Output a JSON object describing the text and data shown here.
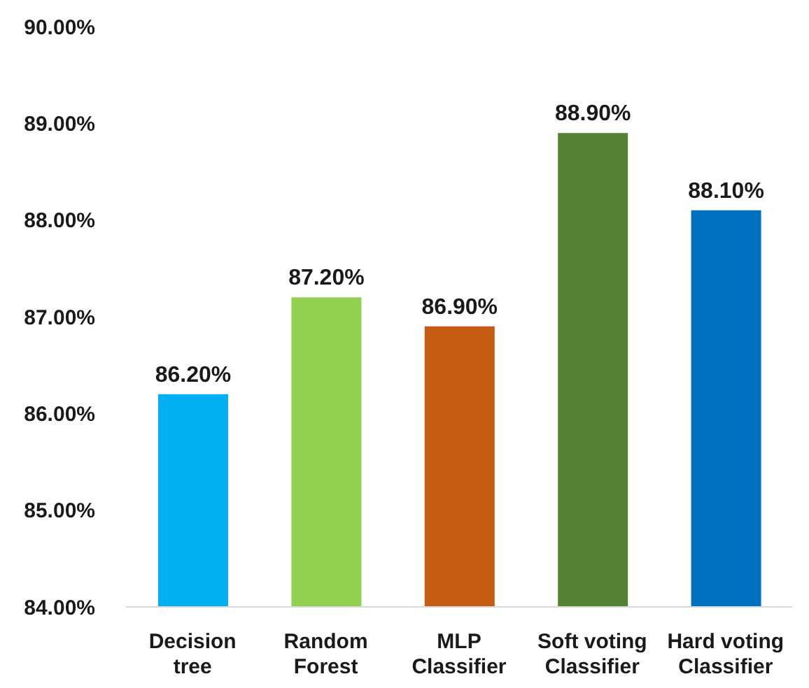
{
  "chart_data": {
    "type": "bar",
    "categories": [
      "Decision tree",
      "Random Forest",
      "MLP Classifier",
      "Soft voting Classifier",
      "Hard voting Classifier"
    ],
    "values": [
      86.2,
      87.2,
      86.9,
      88.9,
      88.1
    ],
    "value_labels": [
      "86.20%",
      "87.20%",
      "86.90%",
      "88.90%",
      "88.10%"
    ],
    "colors": [
      "#00b0f0",
      "#92d050",
      "#c55a11",
      "#548235",
      "#0070c0"
    ],
    "ylim": [
      84,
      90
    ],
    "yticks": [
      {
        "value": 84,
        "label": "84.00%"
      },
      {
        "value": 85,
        "label": "85.00%"
      },
      {
        "value": 86,
        "label": "86.00%"
      },
      {
        "value": 87,
        "label": "87.00%"
      },
      {
        "value": 88,
        "label": "88.00%"
      },
      {
        "value": 89,
        "label": "89.00%"
      },
      {
        "value": 90,
        "label": "90.00%"
      }
    ]
  }
}
